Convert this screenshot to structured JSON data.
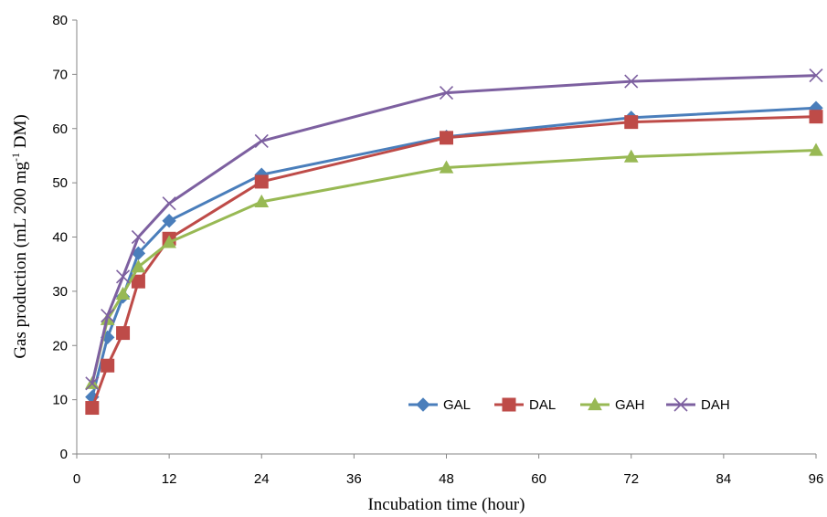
{
  "chart_data": {
    "type": "line",
    "xlabel": "Incubation time (hour)",
    "ylabel": {
      "main": "Gas production (mL 200 mg",
      "superscript": "-1",
      "suffix": " DM)"
    },
    "xlim": [
      0,
      96
    ],
    "ylim": [
      0,
      80
    ],
    "xticks": [
      0,
      12,
      24,
      36,
      48,
      60,
      72,
      84,
      96
    ],
    "yticks": [
      0,
      10,
      20,
      30,
      40,
      50,
      60,
      70,
      80
    ],
    "grid": false,
    "legend_position": "bottom-right",
    "x": [
      2,
      4,
      6,
      8,
      12,
      24,
      48,
      72,
      96
    ],
    "series": [
      {
        "name": "GAL",
        "color": "#4A7EBB",
        "marker": "diamond",
        "values": [
          10.5,
          21.5,
          29.0,
          37.0,
          43.0,
          51.5,
          58.5,
          62.0,
          63.8
        ]
      },
      {
        "name": "DAL",
        "color": "#BE4B48",
        "marker": "square",
        "values": [
          8.5,
          16.3,
          22.3,
          31.8,
          39.7,
          50.2,
          58.3,
          61.2,
          62.2
        ]
      },
      {
        "name": "GAH",
        "color": "#98B954",
        "marker": "triangle",
        "values": [
          13.0,
          24.8,
          29.5,
          34.5,
          39.0,
          46.5,
          52.8,
          54.8,
          56.0
        ]
      },
      {
        "name": "DAH",
        "color": "#7D60A0",
        "marker": "x",
        "values": [
          13.0,
          25.5,
          32.7,
          40.0,
          46.2,
          57.7,
          66.6,
          68.7,
          69.8
        ]
      }
    ]
  }
}
